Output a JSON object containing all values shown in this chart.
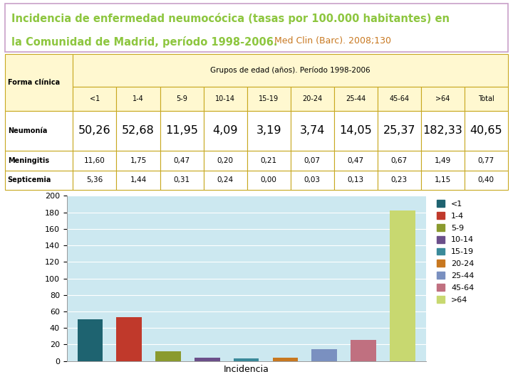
{
  "title_line1": "Incidencia de enfermedad neumocócica (tasas por 100.000 habitantes) en",
  "title_line2_main": "la Comunidad de Madrid, período 1998-2006.",
  "title_line2_ref": " Med Clin (Barc). 2008;130",
  "title_color_main": "#8dc63f",
  "title_color_ref": "#c87820",
  "title_border_color": "#c8a0c8",
  "age_groups": [
    "<1",
    "1-4",
    "5-9",
    "10-14",
    "15-19",
    "20-24",
    "25-44",
    "45-64",
    ">64",
    "Total"
  ],
  "table_header": "Grupos de edad (años). Período 1998-2006",
  "neumonía": [
    50.26,
    52.68,
    11.95,
    4.09,
    3.19,
    3.74,
    14.05,
    25.37,
    182.33,
    40.65
  ],
  "meningitis": [
    11.6,
    1.75,
    0.47,
    0.2,
    0.21,
    0.07,
    0.47,
    0.67,
    1.49,
    0.77
  ],
  "septicemia": [
    5.36,
    1.44,
    0.31,
    0.24,
    0.0,
    0.03,
    0.13,
    0.23,
    1.15,
    0.4
  ],
  "bar_values": [
    50.26,
    52.68,
    11.95,
    4.09,
    3.19,
    3.74,
    14.05,
    25.37,
    182.33
  ],
  "bar_colors": [
    "#1e6370",
    "#c0392b",
    "#8a9a2e",
    "#6b4f8a",
    "#3a8a9a",
    "#c87820",
    "#7a90c0",
    "#c07080",
    "#c8d870"
  ],
  "legend_labels": [
    "<1",
    "1-4",
    "5-9",
    "10-14",
    "15-19",
    "20-24",
    "25-44",
    "45-64",
    ">64"
  ],
  "chart_bg_color": "#cce8f0",
  "yticks": [
    0,
    20,
    40,
    60,
    80,
    100,
    120,
    140,
    160,
    180,
    200
  ],
  "xlabel": "Incidencia",
  "table_border_color": "#c8a820",
  "table_header_bg": "#fff8d0",
  "table_data_bg": "#ffffff"
}
